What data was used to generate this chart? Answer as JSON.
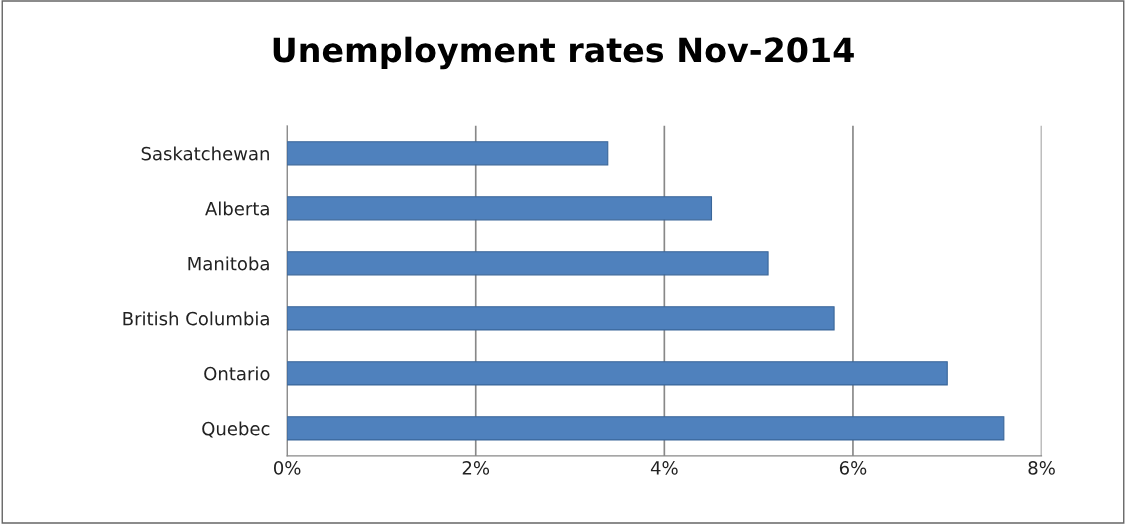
{
  "chart_data": {
    "type": "bar",
    "orientation": "horizontal",
    "title": "Unemployment rates Nov-2014",
    "categories": [
      "Saskatchewan",
      "Alberta",
      "Manitoba",
      "British Columbia",
      "Ontario",
      "Quebec"
    ],
    "values": [
      3.4,
      4.5,
      5.1,
      5.8,
      7.0,
      7.6
    ],
    "color": "#4f81bd",
    "xlim": [
      0,
      8
    ],
    "xticks": [
      {
        "value": 0,
        "label": "0%"
      },
      {
        "value": 2,
        "label": "2%"
      },
      {
        "value": 4,
        "label": "4%"
      },
      {
        "value": 6,
        "label": "6%"
      },
      {
        "value": 8,
        "label": "8%"
      }
    ],
    "grid": "x"
  }
}
